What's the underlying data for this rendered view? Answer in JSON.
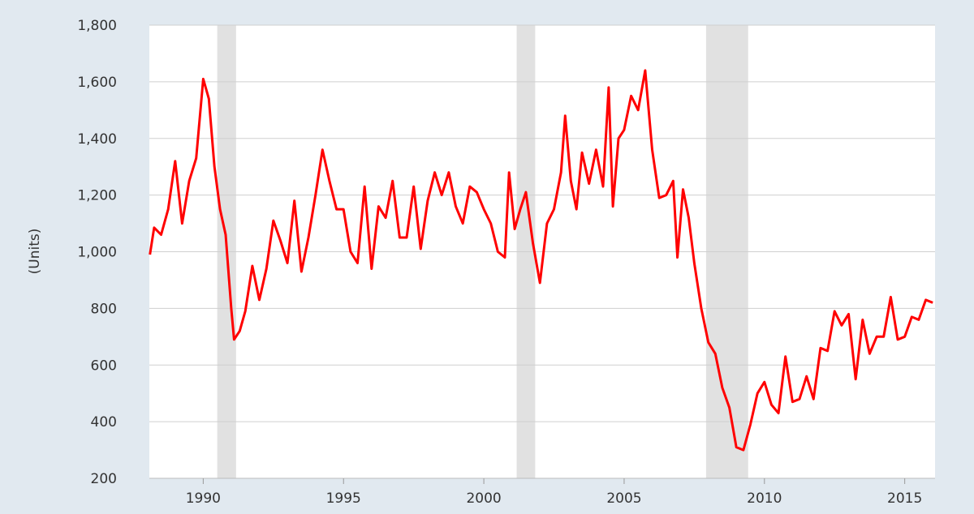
{
  "chart_data": {
    "type": "line",
    "y_label": "(Units)",
    "xlim": [
      1988.08,
      2016.08
    ],
    "xticks": [
      1990,
      1995,
      2000,
      2005,
      2010,
      2015
    ],
    "ylim": [
      200,
      1800
    ],
    "yticks": [
      200,
      {
        "value": 400,
        "label": "400"
      },
      600,
      800,
      {
        "value": 1000,
        "label": "1,000"
      },
      {
        "value": 1200,
        "label": "1,200"
      },
      {
        "value": 1400,
        "label": "1,400"
      },
      {
        "value": 1600,
        "label": "1,600"
      },
      {
        "value": 1800,
        "label": "1,800"
      }
    ],
    "grid": true,
    "recessions": [
      [
        1990.5,
        1991.17
      ],
      [
        2001.17,
        2001.83
      ],
      [
        2007.92,
        2009.42
      ]
    ],
    "recession_color": "#e1e1e1",
    "x": [
      1988.1,
      1988.25,
      1988.5,
      1988.75,
      1989.0,
      1989.25,
      1989.5,
      1989.75,
      1990.0,
      1990.2,
      1990.4,
      1990.6,
      1990.8,
      1991.0,
      1991.1,
      1991.3,
      1991.5,
      1991.75,
      1992.0,
      1992.25,
      1992.5,
      1992.75,
      1993.0,
      1993.25,
      1993.5,
      1993.75,
      1994.0,
      1994.25,
      1994.5,
      1994.75,
      1995.0,
      1995.25,
      1995.5,
      1995.75,
      1996.0,
      1996.25,
      1996.5,
      1996.75,
      1997.0,
      1997.25,
      1997.5,
      1997.75,
      1998.0,
      1998.25,
      1998.5,
      1998.75,
      1999.0,
      1999.25,
      1999.5,
      1999.75,
      2000.0,
      2000.25,
      2000.5,
      2000.75,
      2000.9,
      2001.1,
      2001.3,
      2001.5,
      2001.75,
      2002.0,
      2002.25,
      2002.5,
      2002.75,
      2002.9,
      2003.1,
      2003.3,
      2003.5,
      2003.75,
      2004.0,
      2004.25,
      2004.45,
      2004.6,
      2004.8,
      2005.0,
      2005.25,
      2005.5,
      2005.75,
      2006.0,
      2006.25,
      2006.5,
      2006.75,
      2006.9,
      2007.1,
      2007.3,
      2007.5,
      2007.75,
      2008.0,
      2008.25,
      2008.5,
      2008.75,
      2009.0,
      2009.25,
      2009.5,
      2009.75,
      2010.0,
      2010.25,
      2010.5,
      2010.75,
      2011.0,
      2011.25,
      2011.5,
      2011.75,
      2012.0,
      2012.25,
      2012.5,
      2012.75,
      2013.0,
      2013.25,
      2013.5,
      2013.75,
      2014.0,
      2014.25,
      2014.5,
      2014.75,
      2015.0,
      2015.25,
      2015.5,
      2015.75,
      2016.0
    ],
    "series": [
      {
        "name": "Units",
        "color": "#ff0000",
        "values": [
          990,
          1085,
          1060,
          1150,
          1320,
          1100,
          1250,
          1330,
          1610,
          1540,
          1300,
          1150,
          1060,
          800,
          690,
          720,
          790,
          950,
          830,
          940,
          1110,
          1040,
          960,
          1180,
          930,
          1050,
          1200,
          1360,
          1250,
          1150,
          1150,
          1000,
          960,
          1230,
          940,
          1160,
          1120,
          1250,
          1050,
          1050,
          1230,
          1010,
          1180,
          1280,
          1200,
          1280,
          1160,
          1100,
          1230,
          1210,
          1150,
          1100,
          1000,
          980,
          1280,
          1080,
          1150,
          1210,
          1030,
          890,
          1100,
          1150,
          1280,
          1480,
          1250,
          1150,
          1350,
          1240,
          1360,
          1230,
          1580,
          1160,
          1400,
          1430,
          1550,
          1500,
          1640,
          1360,
          1190,
          1200,
          1250,
          980,
          1220,
          1120,
          960,
          800,
          680,
          640,
          520,
          450,
          310,
          300,
          390,
          500,
          540,
          460,
          430,
          630,
          470,
          480,
          560,
          480,
          660,
          650,
          790,
          740,
          780,
          550,
          760,
          640,
          700,
          700,
          840,
          690,
          700,
          770,
          760,
          830,
          820
        ]
      }
    ]
  }
}
